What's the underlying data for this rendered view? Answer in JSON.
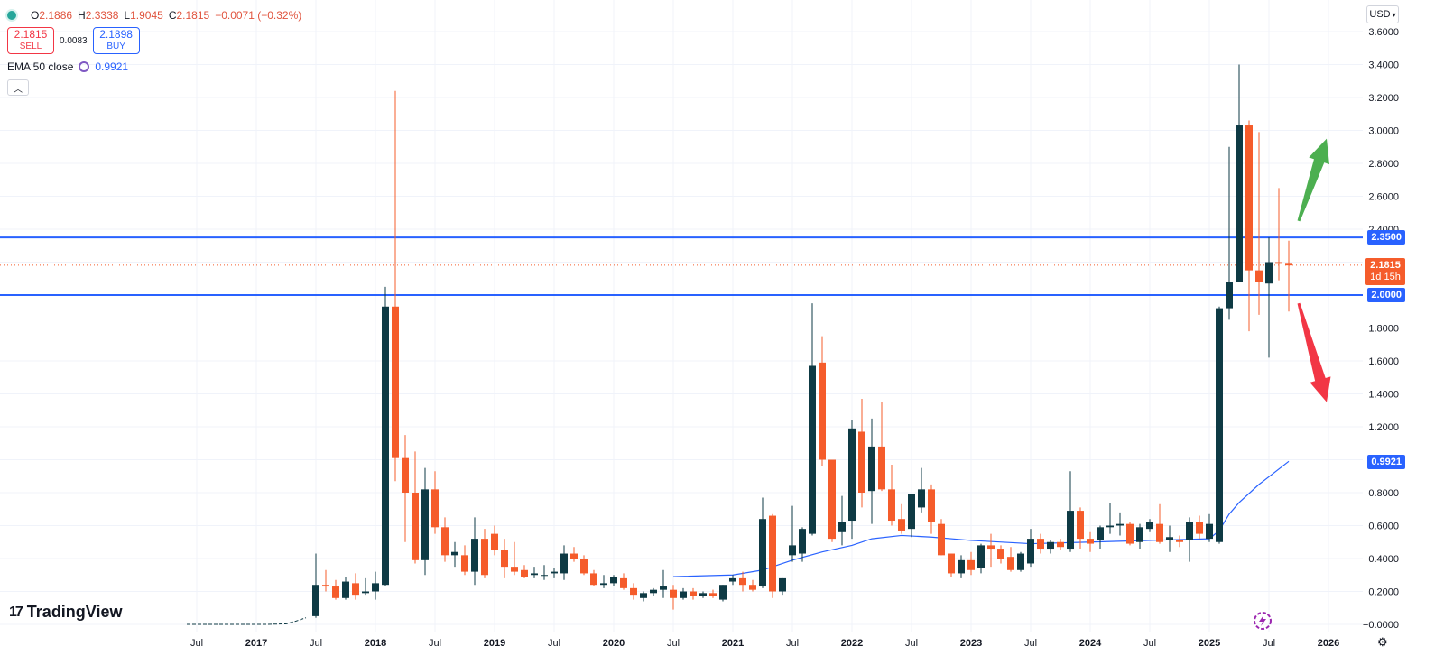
{
  "header": {
    "open_label": "O",
    "open": "2.1886",
    "high_label": "H",
    "high": "2.3338",
    "low_label": "L",
    "low": "1.9045",
    "close_label": "C",
    "close": "2.1815",
    "change": "−0.0071 (−0.32%)"
  },
  "trade": {
    "sell_price": "2.1815",
    "sell_label": "SELL",
    "spread": "0.0083",
    "buy_price": "2.1898",
    "buy_label": "BUY"
  },
  "indicator": {
    "name": "EMA 50 close",
    "value": "0.9921",
    "color": "#2962ff"
  },
  "currency": {
    "label": "USD",
    "icon": "chevron-down-icon"
  },
  "collapse_icon": "chevron-up-icon",
  "logo": {
    "mark": "17",
    "text": "TradingView"
  },
  "settings_icon": "gear-icon",
  "scale_badges": {
    "upper_level": "2.3500",
    "lower_level": "2.0000",
    "last_price": "2.1815",
    "countdown": "1d 15h",
    "ema": "0.9921"
  },
  "chart_data": {
    "type": "candlestick",
    "timeframe": "monthly",
    "colors": {
      "up": "#0e3a44",
      "down": "#f55c2b",
      "ema": "#2962ff",
      "levels": "#2962ff",
      "up_arrow": "#4caf50",
      "down_arrow": "#f23645"
    },
    "y_ticks": [
      "−0.0000",
      "0.2000",
      "0.4000",
      "0.6000",
      "0.8000",
      "1.0000",
      "1.2000",
      "1.4000",
      "1.6000",
      "1.8000",
      "2.0000",
      "2.2000",
      "2.4000",
      "2.6000",
      "2.8000",
      "3.0000",
      "3.2000",
      "3.4000",
      "3.6000"
    ],
    "ylim": [
      0,
      3.6
    ],
    "x_ticks": [
      {
        "label": "Jul",
        "date": "2016-07"
      },
      {
        "label": "2017",
        "date": "2017-01",
        "bold": true
      },
      {
        "label": "Jul",
        "date": "2017-07"
      },
      {
        "label": "2018",
        "date": "2018-01",
        "bold": true
      },
      {
        "label": "Jul",
        "date": "2018-07"
      },
      {
        "label": "2019",
        "date": "2019-01",
        "bold": true
      },
      {
        "label": "Jul",
        "date": "2019-07"
      },
      {
        "label": "2020",
        "date": "2020-01",
        "bold": true
      },
      {
        "label": "Jul",
        "date": "2020-07"
      },
      {
        "label": "2021",
        "date": "2021-01",
        "bold": true
      },
      {
        "label": "Jul",
        "date": "2021-07"
      },
      {
        "label": "2022",
        "date": "2022-01",
        "bold": true
      },
      {
        "label": "Jul",
        "date": "2022-07"
      },
      {
        "label": "2023",
        "date": "2023-01",
        "bold": true
      },
      {
        "label": "Jul",
        "date": "2023-07"
      },
      {
        "label": "2024",
        "date": "2024-01",
        "bold": true
      },
      {
        "label": "Jul",
        "date": "2024-07"
      },
      {
        "label": "2025",
        "date": "2025-01",
        "bold": true
      },
      {
        "label": "Jul",
        "date": "2025-07"
      },
      {
        "label": "2026",
        "date": "2026-01",
        "bold": true
      }
    ],
    "horizontal_levels": [
      2.35,
      2.0
    ],
    "last_price": 2.1815,
    "pre_history": [
      {
        "d": "2016-06",
        "v": 0.0
      },
      {
        "d": "2017-02",
        "v": 0.0
      },
      {
        "d": "2017-04",
        "v": 0.003
      },
      {
        "d": "2017-05",
        "v": 0.02
      },
      {
        "d": "2017-06",
        "v": 0.04
      }
    ],
    "candles": [
      {
        "d": "2017-07",
        "o": 0.05,
        "h": 0.43,
        "l": 0.04,
        "c": 0.24
      },
      {
        "d": "2017-08",
        "o": 0.24,
        "h": 0.33,
        "l": 0.2,
        "c": 0.23
      },
      {
        "d": "2017-09",
        "o": 0.23,
        "h": 0.27,
        "l": 0.15,
        "c": 0.16
      },
      {
        "d": "2017-10",
        "o": 0.16,
        "h": 0.29,
        "l": 0.15,
        "c": 0.26
      },
      {
        "d": "2017-11",
        "o": 0.25,
        "h": 0.31,
        "l": 0.15,
        "c": 0.18
      },
      {
        "d": "2017-12",
        "o": 0.19,
        "h": 0.28,
        "l": 0.18,
        "c": 0.2
      },
      {
        "d": "2018-01",
        "o": 0.2,
        "h": 0.32,
        "l": 0.15,
        "c": 0.25
      },
      {
        "d": "2018-02",
        "o": 0.24,
        "h": 2.05,
        "l": 0.23,
        "c": 1.93
      },
      {
        "d": "2018-03",
        "o": 1.93,
        "h": 3.24,
        "l": 0.87,
        "c": 1.01
      },
      {
        "d": "2018-04",
        "o": 1.01,
        "h": 1.15,
        "l": 0.5,
        "c": 0.8
      },
      {
        "d": "2018-05",
        "o": 0.8,
        "h": 1.05,
        "l": 0.37,
        "c": 0.39
      },
      {
        "d": "2018-06",
        "o": 0.39,
        "h": 0.95,
        "l": 0.3,
        "c": 0.82
      },
      {
        "d": "2018-07",
        "o": 0.82,
        "h": 0.93,
        "l": 0.55,
        "c": 0.59
      },
      {
        "d": "2018-08",
        "o": 0.59,
        "h": 0.65,
        "l": 0.38,
        "c": 0.42
      },
      {
        "d": "2018-09",
        "o": 0.42,
        "h": 0.5,
        "l": 0.35,
        "c": 0.44
      },
      {
        "d": "2018-10",
        "o": 0.42,
        "h": 0.48,
        "l": 0.3,
        "c": 0.32
      },
      {
        "d": "2018-11",
        "o": 0.32,
        "h": 0.65,
        "l": 0.24,
        "c": 0.52
      },
      {
        "d": "2018-12",
        "o": 0.52,
        "h": 0.58,
        "l": 0.28,
        "c": 0.3
      },
      {
        "d": "2019-01",
        "o": 0.55,
        "h": 0.6,
        "l": 0.42,
        "c": 0.45
      },
      {
        "d": "2019-02",
        "o": 0.45,
        "h": 0.52,
        "l": 0.28,
        "c": 0.35
      },
      {
        "d": "2019-03",
        "o": 0.35,
        "h": 0.5,
        "l": 0.3,
        "c": 0.32
      },
      {
        "d": "2019-04",
        "o": 0.33,
        "h": 0.36,
        "l": 0.28,
        "c": 0.29
      },
      {
        "d": "2019-05",
        "o": 0.3,
        "h": 0.35,
        "l": 0.28,
        "c": 0.31
      },
      {
        "d": "2019-06",
        "o": 0.3,
        "h": 0.36,
        "l": 0.27,
        "c": 0.3
      },
      {
        "d": "2019-07",
        "o": 0.31,
        "h": 0.34,
        "l": 0.28,
        "c": 0.32
      },
      {
        "d": "2019-08",
        "o": 0.31,
        "h": 0.48,
        "l": 0.27,
        "c": 0.43
      },
      {
        "d": "2019-09",
        "o": 0.43,
        "h": 0.47,
        "l": 0.38,
        "c": 0.4
      },
      {
        "d": "2019-10",
        "o": 0.4,
        "h": 0.42,
        "l": 0.3,
        "c": 0.31
      },
      {
        "d": "2019-11",
        "o": 0.31,
        "h": 0.33,
        "l": 0.23,
        "c": 0.24
      },
      {
        "d": "2019-12",
        "o": 0.24,
        "h": 0.3,
        "l": 0.22,
        "c": 0.25
      },
      {
        "d": "2020-01",
        "o": 0.25,
        "h": 0.3,
        "l": 0.23,
        "c": 0.29
      },
      {
        "d": "2020-02",
        "o": 0.28,
        "h": 0.31,
        "l": 0.21,
        "c": 0.22
      },
      {
        "d": "2020-03",
        "o": 0.22,
        "h": 0.25,
        "l": 0.15,
        "c": 0.18
      },
      {
        "d": "2020-04",
        "o": 0.16,
        "h": 0.2,
        "l": 0.14,
        "c": 0.19
      },
      {
        "d": "2020-05",
        "o": 0.19,
        "h": 0.22,
        "l": 0.17,
        "c": 0.21
      },
      {
        "d": "2020-06",
        "o": 0.21,
        "h": 0.33,
        "l": 0.16,
        "c": 0.23
      },
      {
        "d": "2020-07",
        "o": 0.21,
        "h": 0.24,
        "l": 0.09,
        "c": 0.16
      },
      {
        "d": "2020-08",
        "o": 0.16,
        "h": 0.22,
        "l": 0.15,
        "c": 0.2
      },
      {
        "d": "2020-09",
        "o": 0.2,
        "h": 0.22,
        "l": 0.15,
        "c": 0.17
      },
      {
        "d": "2020-10",
        "o": 0.17,
        "h": 0.2,
        "l": 0.16,
        "c": 0.19
      },
      {
        "d": "2020-11",
        "o": 0.19,
        "h": 0.21,
        "l": 0.16,
        "c": 0.17
      },
      {
        "d": "2020-12",
        "o": 0.15,
        "h": 0.24,
        "l": 0.14,
        "c": 0.24
      },
      {
        "d": "2021-01",
        "o": 0.26,
        "h": 0.3,
        "l": 0.24,
        "c": 0.28
      },
      {
        "d": "2021-02",
        "o": 0.28,
        "h": 0.32,
        "l": 0.2,
        "c": 0.24
      },
      {
        "d": "2021-03",
        "o": 0.24,
        "h": 0.27,
        "l": 0.2,
        "c": 0.21
      },
      {
        "d": "2021-04",
        "o": 0.23,
        "h": 0.77,
        "l": 0.22,
        "c": 0.64
      },
      {
        "d": "2021-05",
        "o": 0.66,
        "h": 0.67,
        "l": 0.16,
        "c": 0.2
      },
      {
        "d": "2021-06",
        "o": 0.2,
        "h": 0.28,
        "l": 0.18,
        "c": 0.28
      },
      {
        "d": "2021-07",
        "o": 0.42,
        "h": 0.72,
        "l": 0.38,
        "c": 0.48
      },
      {
        "d": "2021-08",
        "o": 0.43,
        "h": 0.59,
        "l": 0.38,
        "c": 0.58
      },
      {
        "d": "2021-09",
        "o": 0.55,
        "h": 1.95,
        "l": 0.54,
        "c": 1.57
      },
      {
        "d": "2021-10",
        "o": 1.59,
        "h": 1.75,
        "l": 0.96,
        "c": 1.0
      },
      {
        "d": "2021-11",
        "o": 1.0,
        "h": 1.0,
        "l": 0.5,
        "c": 0.52
      },
      {
        "d": "2021-12",
        "o": 0.56,
        "h": 0.78,
        "l": 0.48,
        "c": 0.62
      },
      {
        "d": "2022-01",
        "o": 0.63,
        "h": 1.24,
        "l": 0.52,
        "c": 1.19
      },
      {
        "d": "2022-02",
        "o": 1.17,
        "h": 1.37,
        "l": 0.71,
        "c": 0.8
      },
      {
        "d": "2022-03",
        "o": 0.81,
        "h": 1.25,
        "l": 0.61,
        "c": 1.08
      },
      {
        "d": "2022-04",
        "o": 1.08,
        "h": 1.35,
        "l": 0.81,
        "c": 0.82
      },
      {
        "d": "2022-05",
        "o": 0.82,
        "h": 0.97,
        "l": 0.6,
        "c": 0.63
      },
      {
        "d": "2022-06",
        "o": 0.64,
        "h": 0.73,
        "l": 0.55,
        "c": 0.57
      },
      {
        "d": "2022-07",
        "o": 0.58,
        "h": 0.79,
        "l": 0.53,
        "c": 0.79
      },
      {
        "d": "2022-08",
        "o": 0.71,
        "h": 0.95,
        "l": 0.68,
        "c": 0.82
      },
      {
        "d": "2022-09",
        "o": 0.82,
        "h": 0.85,
        "l": 0.55,
        "c": 0.62
      },
      {
        "d": "2022-10",
        "o": 0.61,
        "h": 0.64,
        "l": 0.42,
        "c": 0.42
      },
      {
        "d": "2022-11",
        "o": 0.43,
        "h": 0.43,
        "l": 0.29,
        "c": 0.31
      },
      {
        "d": "2022-12",
        "o": 0.31,
        "h": 0.42,
        "l": 0.28,
        "c": 0.39
      },
      {
        "d": "2023-01",
        "o": 0.39,
        "h": 0.44,
        "l": 0.3,
        "c": 0.33
      },
      {
        "d": "2023-02",
        "o": 0.34,
        "h": 0.49,
        "l": 0.31,
        "c": 0.48
      },
      {
        "d": "2023-03",
        "o": 0.48,
        "h": 0.55,
        "l": 0.35,
        "c": 0.46
      },
      {
        "d": "2023-04",
        "o": 0.46,
        "h": 0.48,
        "l": 0.37,
        "c": 0.4
      },
      {
        "d": "2023-05",
        "o": 0.41,
        "h": 0.47,
        "l": 0.32,
        "c": 0.33
      },
      {
        "d": "2023-06",
        "o": 0.33,
        "h": 0.44,
        "l": 0.32,
        "c": 0.43
      },
      {
        "d": "2023-07",
        "o": 0.37,
        "h": 0.58,
        "l": 0.35,
        "c": 0.52
      },
      {
        "d": "2023-08",
        "o": 0.52,
        "h": 0.55,
        "l": 0.43,
        "c": 0.46
      },
      {
        "d": "2023-09",
        "o": 0.46,
        "h": 0.51,
        "l": 0.43,
        "c": 0.5
      },
      {
        "d": "2023-10",
        "o": 0.5,
        "h": 0.52,
        "l": 0.45,
        "c": 0.47
      },
      {
        "d": "2023-11",
        "o": 0.46,
        "h": 0.93,
        "l": 0.44,
        "c": 0.69
      },
      {
        "d": "2023-12",
        "o": 0.69,
        "h": 0.71,
        "l": 0.46,
        "c": 0.52
      },
      {
        "d": "2024-01",
        "o": 0.52,
        "h": 0.56,
        "l": 0.44,
        "c": 0.49
      },
      {
        "d": "2024-02",
        "o": 0.51,
        "h": 0.6,
        "l": 0.46,
        "c": 0.59
      },
      {
        "d": "2024-03",
        "o": 0.59,
        "h": 0.74,
        "l": 0.55,
        "c": 0.6
      },
      {
        "d": "2024-04",
        "o": 0.6,
        "h": 0.68,
        "l": 0.54,
        "c": 0.61
      },
      {
        "d": "2024-05",
        "o": 0.61,
        "h": 0.62,
        "l": 0.48,
        "c": 0.49
      },
      {
        "d": "2024-06",
        "o": 0.5,
        "h": 0.61,
        "l": 0.46,
        "c": 0.59
      },
      {
        "d": "2024-07",
        "o": 0.58,
        "h": 0.64,
        "l": 0.56,
        "c": 0.62
      },
      {
        "d": "2024-08",
        "o": 0.61,
        "h": 0.73,
        "l": 0.49,
        "c": 0.5
      },
      {
        "d": "2024-09",
        "o": 0.51,
        "h": 0.6,
        "l": 0.44,
        "c": 0.53
      },
      {
        "d": "2024-10",
        "o": 0.51,
        "h": 0.54,
        "l": 0.47,
        "c": 0.5
      },
      {
        "d": "2024-11",
        "o": 0.51,
        "h": 0.65,
        "l": 0.38,
        "c": 0.62
      },
      {
        "d": "2024-12",
        "o": 0.62,
        "h": 0.66,
        "l": 0.52,
        "c": 0.55
      },
      {
        "d": "2025-01",
        "o": 0.52,
        "h": 0.67,
        "l": 0.5,
        "c": 0.61
      },
      {
        "d": "2025-02",
        "o": 0.5,
        "h": 1.93,
        "l": 0.49,
        "c": 1.92
      },
      {
        "d": "2025-03",
        "o": 1.92,
        "h": 2.9,
        "l": 1.85,
        "c": 2.08
      },
      {
        "d": "2025-04",
        "o": 2.08,
        "h": 3.4,
        "l": 2.08,
        "c": 3.03
      },
      {
        "d": "2025-05",
        "o": 3.03,
        "h": 3.06,
        "l": 1.78,
        "c": 2.15
      },
      {
        "d": "2025-06",
        "o": 2.15,
        "h": 2.99,
        "l": 1.88,
        "c": 2.08
      },
      {
        "d": "2025-07",
        "o": 2.07,
        "h": 2.35,
        "l": 1.62,
        "c": 2.2
      },
      {
        "d": "2025-08",
        "o": 2.2,
        "h": 2.65,
        "l": 2.09,
        "c": 2.19
      },
      {
        "d": "2025-09",
        "o": 2.19,
        "h": 2.33,
        "l": 1.9,
        "c": 2.18
      }
    ],
    "ema50": [
      {
        "d": "2020-07",
        "v": 0.29
      },
      {
        "d": "2021-01",
        "v": 0.3
      },
      {
        "d": "2021-04",
        "v": 0.33
      },
      {
        "d": "2021-07",
        "v": 0.39
      },
      {
        "d": "2021-10",
        "v": 0.44
      },
      {
        "d": "2022-01",
        "v": 0.48
      },
      {
        "d": "2022-03",
        "v": 0.52
      },
      {
        "d": "2022-06",
        "v": 0.54
      },
      {
        "d": "2022-09",
        "v": 0.53
      },
      {
        "d": "2023-01",
        "v": 0.51
      },
      {
        "d": "2023-07",
        "v": 0.49
      },
      {
        "d": "2024-01",
        "v": 0.5
      },
      {
        "d": "2024-07",
        "v": 0.51
      },
      {
        "d": "2025-01",
        "v": 0.52
      },
      {
        "d": "2025-02",
        "v": 0.57
      },
      {
        "d": "2025-03",
        "v": 0.67
      },
      {
        "d": "2025-04",
        "v": 0.74
      },
      {
        "d": "2025-06",
        "v": 0.85
      },
      {
        "d": "2025-09",
        "v": 0.99
      }
    ],
    "annotations": [
      {
        "type": "arrow",
        "direction": "up",
        "color": "#4caf50",
        "from": {
          "d": "2025-10",
          "v": 2.45
        },
        "to": {
          "d": "2025-11",
          "v": 2.95
        }
      },
      {
        "type": "arrow",
        "direction": "down",
        "color": "#f23645",
        "from": {
          "d": "2025-10",
          "v": 1.95
        },
        "to": {
          "d": "2025-11",
          "v": 1.35
        }
      }
    ]
  }
}
